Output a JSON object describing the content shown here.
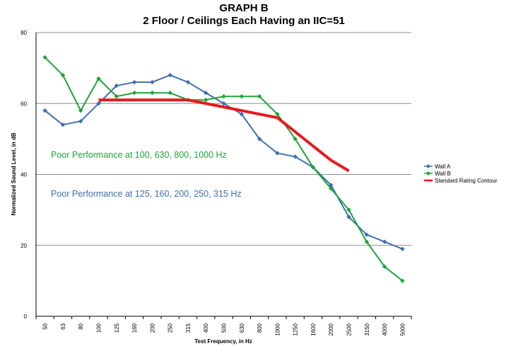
{
  "chart_data": {
    "type": "line",
    "title": "GRAPH  B",
    "subtitle": "2 Floor / Ceilings Each Having an IIC=51",
    "xlabel": "Test Frequency, in Hz",
    "ylabel": "Normalized Sound Level, in dB",
    "categories": [
      "50",
      "63",
      "80",
      "100",
      "125",
      "160",
      "200",
      "250",
      "315",
      "400",
      "500",
      "630",
      "800",
      "1000",
      "1250",
      "1600",
      "2000",
      "2500",
      "3150",
      "4000",
      "5000"
    ],
    "ylim": [
      0,
      80
    ],
    "yticks": [
      "0",
      "20",
      "40",
      "60",
      "80"
    ],
    "grid": true,
    "legend_position": "right",
    "series": [
      {
        "name": "Wall A",
        "color": "#3f6fb0",
        "marker": "diamond",
        "values": [
          58,
          54,
          55,
          60,
          65,
          66,
          66,
          68,
          66,
          63,
          60,
          57,
          50,
          46,
          45,
          42,
          37,
          28,
          23,
          21,
          19
        ]
      },
      {
        "name": "Wall B",
        "color": "#1fa33a",
        "marker": "diamond",
        "values": [
          73,
          68,
          58,
          67,
          62,
          63,
          63,
          63,
          61,
          61,
          62,
          62,
          62,
          57,
          50,
          42,
          36,
          30,
          21,
          14,
          10
        ]
      },
      {
        "name": "Standard Rating Contour",
        "color": "#e8191c",
        "marker": "none",
        "values": [
          null,
          null,
          null,
          61,
          61,
          61,
          61,
          61,
          61,
          60,
          59,
          58,
          57,
          56,
          52,
          48,
          44,
          41,
          null,
          null,
          null
        ]
      }
    ],
    "annotations": [
      {
        "text": "Poor Performance at 100, 630, 800, 1000 Hz",
        "color": "#1fa33a"
      },
      {
        "text": "Poor Performance at 125, 160, 200, 250, 315 Hz",
        "color": "#3f6fb0"
      }
    ]
  }
}
